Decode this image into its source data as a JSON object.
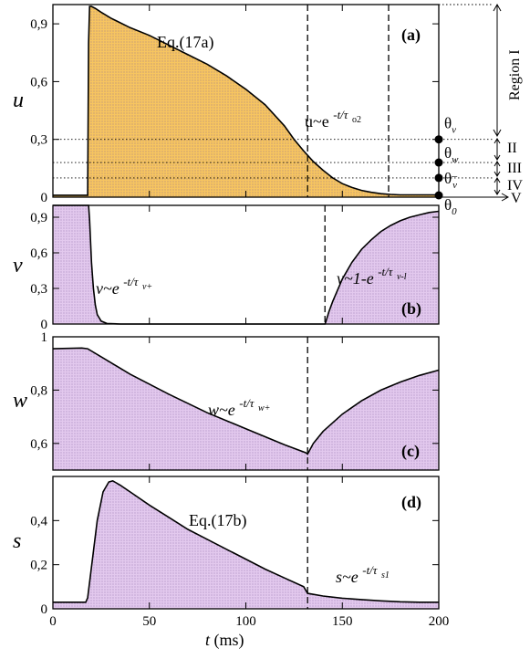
{
  "chart_data": [
    {
      "panel": "(a)",
      "type": "area",
      "ylabel": "u",
      "yticks": [
        "0",
        "0,3",
        "0,6",
        "0,9"
      ],
      "ytick_values": [
        0,
        0.3,
        0.6,
        0.9
      ],
      "ylim": [
        0,
        1.0
      ],
      "xlim": [
        0,
        200
      ],
      "fill_color": "#f7c560",
      "x": [
        0,
        18,
        18.5,
        19,
        20,
        22,
        25,
        30,
        40,
        50,
        60,
        70,
        80,
        90,
        100,
        110,
        120,
        125,
        130,
        135,
        140,
        145,
        150,
        155,
        160,
        165,
        170,
        175,
        180,
        190,
        200
      ],
      "y": [
        0.01,
        0.01,
        0.8,
        0.99,
        0.99,
        0.98,
        0.96,
        0.93,
        0.88,
        0.84,
        0.79,
        0.74,
        0.69,
        0.63,
        0.56,
        0.48,
        0.37,
        0.3,
        0.24,
        0.185,
        0.14,
        0.1,
        0.07,
        0.05,
        0.035,
        0.025,
        0.018,
        0.014,
        0.012,
        0.012,
        0.012
      ],
      "vlines": [
        132,
        174
      ],
      "annotations": [
        "Eq.(17a)",
        "u~e",
        "-t/τ",
        "o2"
      ],
      "thresholds": [
        {
          "label": "θ",
          "sub": "v",
          "value": 0.3
        },
        {
          "label": "θ",
          "sub": "w",
          "value": 0.18
        },
        {
          "label": "θ",
          "sub": "v",
          "sup": "–",
          "value": 0.1
        },
        {
          "label": "θ",
          "sub": "0",
          "value": 0.006
        }
      ],
      "regions": [
        "Region I",
        "II",
        "III",
        "IV",
        "V"
      ]
    },
    {
      "panel": "(b)",
      "type": "area",
      "ylabel": "v",
      "yticks": [
        "0",
        "0,3",
        "0,6",
        "0,9"
      ],
      "ytick_values": [
        0,
        0.3,
        0.6,
        0.9
      ],
      "ylim": [
        0,
        1.0
      ],
      "xlim": [
        0,
        200
      ],
      "fill_color": "#e3c9ee",
      "x": [
        0,
        18.5,
        19,
        20,
        21,
        22,
        23,
        25,
        28,
        35,
        60,
        100,
        140,
        141,
        141.5,
        143,
        145,
        150,
        155,
        160,
        165,
        170,
        175,
        180,
        185,
        190,
        195,
        200
      ],
      "y": [
        1.0,
        1.0,
        0.88,
        0.52,
        0.3,
        0.16,
        0.08,
        0.025,
        0.005,
        0,
        0,
        0,
        0,
        0,
        0.02,
        0.1,
        0.19,
        0.38,
        0.52,
        0.63,
        0.71,
        0.78,
        0.83,
        0.87,
        0.9,
        0.92,
        0.94,
        0.95
      ],
      "vlines": [
        141
      ],
      "annotations": [
        "v~e",
        "-t/τ",
        "v+",
        "v~1-e",
        "-t/τ",
        "v-l"
      ]
    },
    {
      "panel": "(c)",
      "type": "area",
      "ylabel": "w",
      "yticks": [
        "0,6",
        "0,8",
        "1"
      ],
      "ytick_values": [
        0.6,
        0.8,
        1.0
      ],
      "ylim": [
        0.5,
        1.0
      ],
      "xlim": [
        0,
        200
      ],
      "fill_color": "#e3c9ee",
      "x": [
        0,
        15,
        18,
        25,
        40,
        60,
        80,
        100,
        120,
        131,
        132,
        135,
        140,
        150,
        160,
        170,
        180,
        190,
        200
      ],
      "y": [
        0.955,
        0.958,
        0.955,
        0.925,
        0.86,
        0.785,
        0.715,
        0.655,
        0.595,
        0.565,
        0.56,
        0.6,
        0.645,
        0.71,
        0.76,
        0.8,
        0.83,
        0.855,
        0.875
      ],
      "vlines": [
        132
      ],
      "annotations": [
        "w~e",
        "-t/τ",
        "w+"
      ]
    },
    {
      "panel": "(d)",
      "type": "area",
      "ylabel": "s",
      "yticks": [
        "0",
        "0,2",
        "0,4"
      ],
      "ytick_values": [
        0,
        0.2,
        0.4
      ],
      "ylim": [
        0,
        0.6
      ],
      "xlim": [
        0,
        200
      ],
      "xticks": [
        "0",
        "50",
        "100",
        "150",
        "200"
      ],
      "xtick_values": [
        0,
        50,
        100,
        150,
        200
      ],
      "xlabel_var": "t",
      "xlabel_unit": " (ms)",
      "fill_color": "#e3c9ee",
      "x": [
        0,
        17,
        18,
        20,
        23,
        26,
        29,
        31,
        35,
        40,
        50,
        60,
        70,
        80,
        90,
        100,
        110,
        120,
        130,
        132,
        140,
        150,
        160,
        170,
        180,
        190,
        200
      ],
      "y": [
        0.03,
        0.03,
        0.05,
        0.19,
        0.4,
        0.53,
        0.575,
        0.58,
        0.56,
        0.53,
        0.47,
        0.415,
        0.36,
        0.315,
        0.27,
        0.225,
        0.18,
        0.14,
        0.1,
        0.07,
        0.058,
        0.048,
        0.042,
        0.036,
        0.032,
        0.03,
        0.03
      ],
      "vlines": [
        132
      ],
      "annotations": [
        "Eq.(17b)",
        "s~e",
        "-t/τ",
        "s1"
      ]
    }
  ]
}
